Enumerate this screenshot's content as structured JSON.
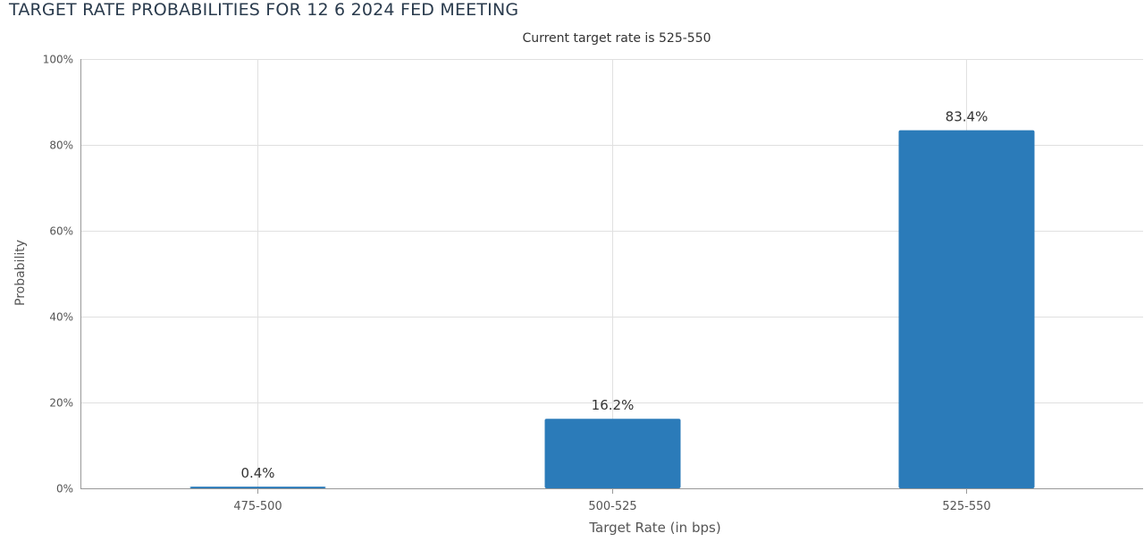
{
  "page": {
    "title": "TARGET RATE PROBABILITIES FOR 12 6 2024 FED MEETING"
  },
  "colors": {
    "bar": "#2b7bb9",
    "grid": "#e0e0e0",
    "axis": "#999999",
    "text": "#333333",
    "axis_text": "#555555"
  },
  "chart_data": {
    "type": "bar",
    "title": "",
    "subtitle": "Current target rate is 525-550",
    "xlabel": "Target Rate (in bps)",
    "ylabel": "Probability",
    "categories": [
      "475-500",
      "500-525",
      "525-550"
    ],
    "values": [
      0.4,
      16.2,
      83.4
    ],
    "data_labels": [
      "0.4%",
      "16.2%",
      "83.4%"
    ],
    "ylim": [
      0,
      100
    ],
    "yticks": [
      0,
      20,
      40,
      60,
      80,
      100
    ],
    "ytick_labels": [
      "0%",
      "20%",
      "40%",
      "60%",
      "80%",
      "100%"
    ],
    "grid": true,
    "legend": "none"
  }
}
